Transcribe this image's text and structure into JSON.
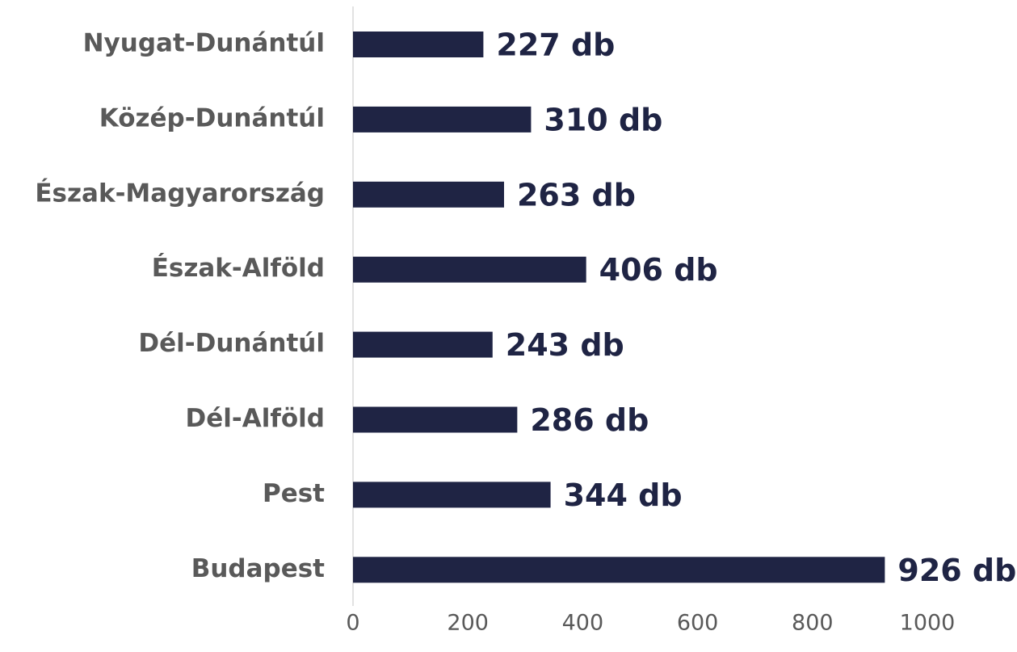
{
  "chart_data": {
    "type": "bar",
    "orientation": "horizontal",
    "categories": [
      "Nyugat-Dunántúl",
      "Közép-Dunántúl",
      "Észak-Magyarország",
      "Észak-Alföld",
      "Dél-Dunántúl",
      "Dél-Alföld",
      "Pest",
      "Budapest"
    ],
    "values": [
      227,
      310,
      263,
      406,
      243,
      286,
      344,
      926
    ],
    "value_labels": [
      "227 db",
      "310 db",
      "263 db",
      "406 db",
      "243 db",
      "286 db",
      "344 db",
      "926 db"
    ],
    "color": "#1f2444",
    "xlim": [
      0,
      1000
    ],
    "xticks": [
      0,
      200,
      400,
      600,
      800,
      1000
    ],
    "grid": false
  }
}
